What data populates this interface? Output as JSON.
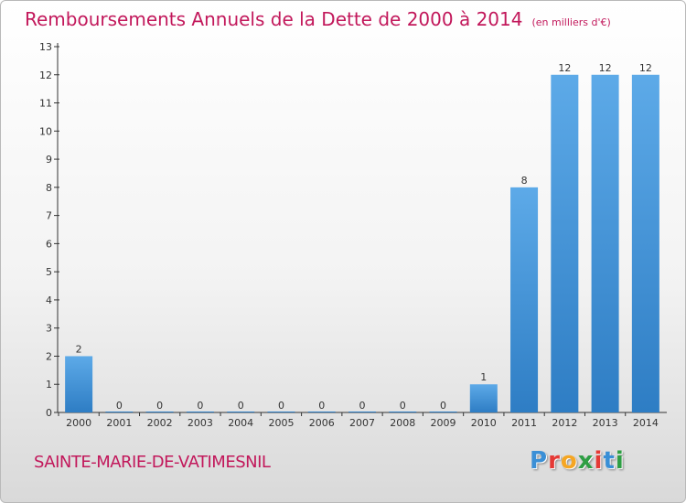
{
  "title": {
    "main": "Remboursements Annuels de la Dette de 2000 à 2014",
    "unit": "(en milliers d'€)"
  },
  "commune": "SAINTE-MARIE-DE-VATIMESNIL",
  "logo": {
    "letters": [
      "P",
      "r",
      "o",
      "x",
      "i",
      "t",
      "i"
    ],
    "colors": [
      "#3a8fd6",
      "#e53935",
      "#f5a623",
      "#2e9e44",
      "#e53935",
      "#3a8fd6",
      "#2e9e44"
    ]
  },
  "colors": {
    "bar_light": "#5daae8",
    "bar_dark": "#2e7dc4",
    "axis": "#333333"
  },
  "chart_data": {
    "type": "bar",
    "categories": [
      "2000",
      "2001",
      "2002",
      "2003",
      "2004",
      "2005",
      "2006",
      "2007",
      "2008",
      "2009",
      "2010",
      "2011",
      "2012",
      "2013",
      "2014"
    ],
    "values": [
      2,
      0,
      0,
      0,
      0,
      0,
      0,
      0,
      0,
      0,
      1,
      8,
      12,
      12,
      12
    ],
    "data_labels": [
      "2",
      "0",
      "0",
      "0",
      "0",
      "0",
      "0",
      "0",
      "0",
      "0",
      "1",
      "8",
      "12",
      "12",
      "12"
    ],
    "yticks": [
      "0",
      "1",
      "2",
      "3",
      "4",
      "5",
      "6",
      "7",
      "8",
      "9",
      "10",
      "11",
      "12",
      "13"
    ],
    "ylim": [
      0,
      13
    ],
    "grid": false,
    "xlabel": "",
    "ylabel": ""
  }
}
